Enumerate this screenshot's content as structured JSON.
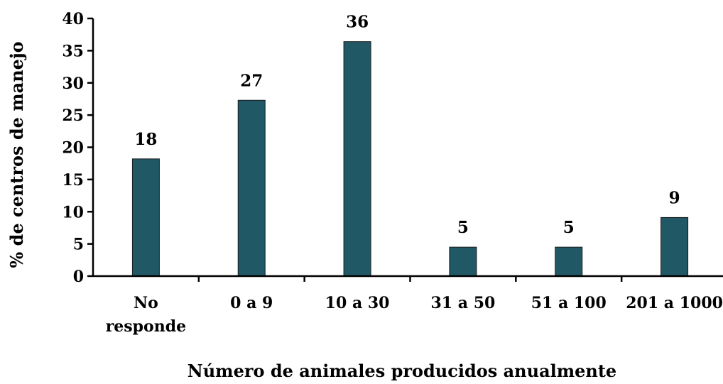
{
  "chart_data": {
    "type": "bar",
    "categories": [
      [
        "No",
        "responde"
      ],
      [
        "0 a 9"
      ],
      [
        "10 a 30"
      ],
      [
        "31 a 50"
      ],
      [
        "51 a 100"
      ],
      [
        "201 a 1000"
      ]
    ],
    "values": [
      18.2,
      27.3,
      36.4,
      4.5,
      4.5,
      9.1
    ],
    "value_labels": [
      "18",
      "27",
      "36",
      "5",
      "5",
      "9"
    ],
    "xlabel": "Número de animales producidos anualmente",
    "ylabel": "%  de  centros de manejo",
    "ylim": [
      0,
      40
    ],
    "yticks": [
      0,
      5,
      10,
      15,
      20,
      25,
      30,
      35,
      40
    ],
    "grid": false,
    "legend": "none",
    "bar_color": "#215866"
  }
}
